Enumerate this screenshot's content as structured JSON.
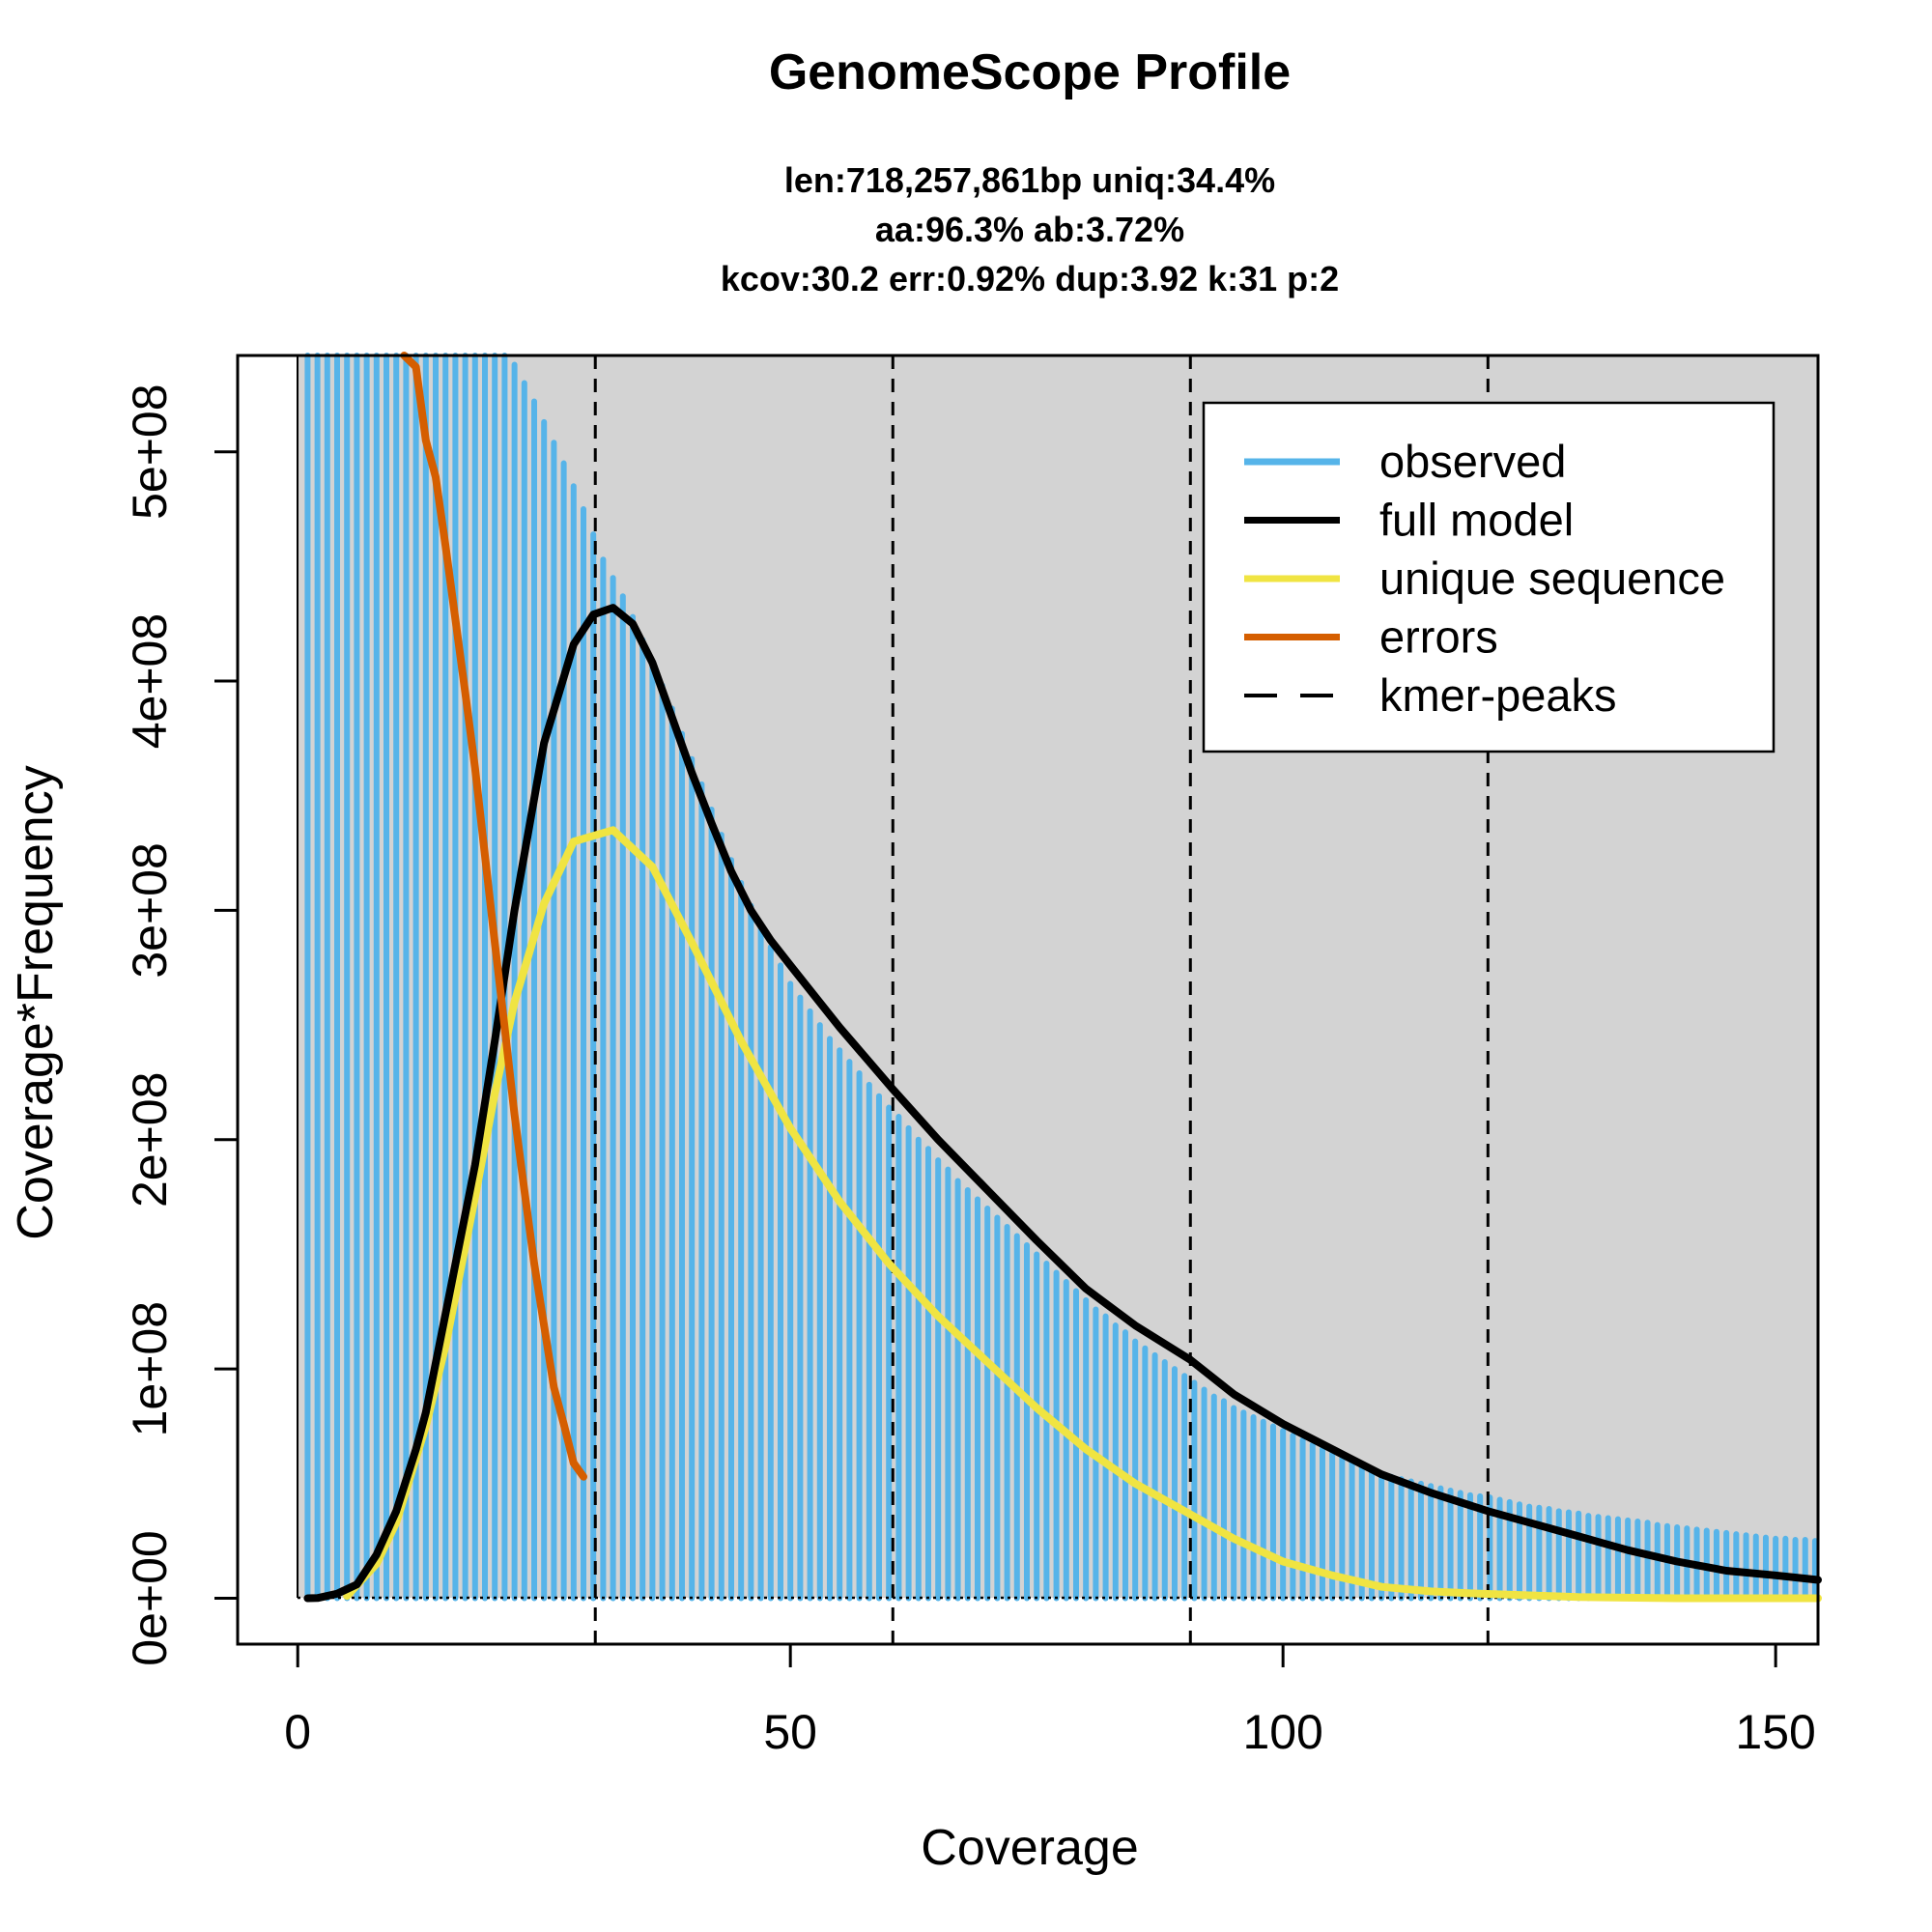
{
  "chart_data": {
    "type": "bar",
    "title": "GenomeScope Profile",
    "subtitle_lines": [
      "len:718,257,861bp uniq:34.4%",
      "aa:96.3% ab:3.72%",
      "kcov:30.2 err:0.92%  dup:3.92  k:31 p:2"
    ],
    "xlabel": "Coverage",
    "ylabel": "Coverage*Frequency",
    "xlim": [
      -6.1,
      154.3
    ],
    "ylim": [
      -20000000,
      542000000
    ],
    "value_scale": 100000000,
    "x_ticks": [
      {
        "value": 0,
        "label": "0"
      },
      {
        "value": 50,
        "label": "50"
      },
      {
        "value": 100,
        "label": "100"
      },
      {
        "value": 150,
        "label": "150"
      }
    ],
    "y_ticks": [
      {
        "value": 0,
        "label": "0e+00"
      },
      {
        "value": 1,
        "label": "1e+08"
      },
      {
        "value": 2,
        "label": "2e+08"
      },
      {
        "value": 3,
        "label": "3e+08"
      },
      {
        "value": 4,
        "label": "4e+08"
      },
      {
        "value": 5,
        "label": "5e+08"
      }
    ],
    "colors": {
      "observed": "#56B4E9",
      "full_model": "#000000",
      "unique": "#F0E442",
      "errors": "#D55E00",
      "background": "#D3D3D3"
    },
    "legend": {
      "placement": "top-right",
      "entries": [
        {
          "label": "observed",
          "key": "observed",
          "dash": false
        },
        {
          "label": "full model",
          "key": "full_model",
          "dash": false
        },
        {
          "label": "unique sequence",
          "key": "unique",
          "dash": false
        },
        {
          "label": "errors",
          "key": "errors",
          "dash": false
        },
        {
          "label": "kmer-peaks",
          "key": "full_model",
          "dash": true
        }
      ]
    },
    "kmer_peaks": [
      30.2,
      60.4,
      90.6,
      120.8
    ],
    "observed": {
      "x_start": 1,
      "values": [
        40,
        25,
        18,
        14,
        12,
        10.5,
        9.5,
        8.6,
        7.9,
        7.3,
        6.8,
        6.5,
        6.2,
        6.0,
        5.85,
        5.75,
        5.65,
        5.6,
        5.55,
        5.5,
        5.45,
        5.38,
        5.3,
        5.22,
        5.13,
        5.04,
        4.95,
        4.85,
        4.75,
        4.64,
        4.53,
        4.45,
        4.37,
        4.28,
        4.18,
        4.08,
        3.98,
        3.88,
        3.77,
        3.66,
        3.55,
        3.44,
        3.33,
        3.22,
        3.12,
        3.02,
        2.93,
        2.84,
        2.76,
        2.68,
        2.62,
        2.56,
        2.5,
        2.44,
        2.39,
        2.34,
        2.29,
        2.24,
        2.19,
        2.14,
        2.1,
        2.05,
        2.0,
        1.96,
        1.91,
        1.87,
        1.82,
        1.78,
        1.74,
        1.7,
        1.66,
        1.62,
        1.58,
        1.54,
        1.5,
        1.46,
        1.42,
        1.38,
        1.34,
        1.3,
        1.26,
        1.23,
        1.19,
        1.16,
        1.12,
        1.09,
        1.06,
        1.03,
        1.0,
        0.97,
        0.94,
        0.91,
        0.88,
        0.86,
        0.83,
        0.81,
        0.79,
        0.77,
        0.75,
        0.73,
        0.71,
        0.69,
        0.67,
        0.65,
        0.63,
        0.61,
        0.59,
        0.57,
        0.56,
        0.54,
        0.53,
        0.52,
        0.51,
        0.5,
        0.49,
        0.48,
        0.47,
        0.46,
        0.45,
        0.445,
        0.44,
        0.43,
        0.42,
        0.41,
        0.4,
        0.395,
        0.39,
        0.38,
        0.375,
        0.37,
        0.36,
        0.355,
        0.35,
        0.345,
        0.34,
        0.335,
        0.33,
        0.32,
        0.315,
        0.31,
        0.305,
        0.3,
        0.295,
        0.29,
        0.285,
        0.28,
        0.275,
        0.27,
        0.265,
        0.26,
        0.26,
        0.255,
        0.255,
        0.25
      ]
    },
    "full_model": [
      [
        1,
        0
      ],
      [
        2,
        0.001
      ],
      [
        4,
        0.02
      ],
      [
        6,
        0.06
      ],
      [
        8,
        0.19
      ],
      [
        10,
        0.38
      ],
      [
        12,
        0.65
      ],
      [
        13,
        0.81
      ],
      [
        15,
        1.24
      ],
      [
        18,
        1.89
      ],
      [
        20,
        2.43
      ],
      [
        22,
        3.0
      ],
      [
        25,
        3.73
      ],
      [
        28,
        4.16
      ],
      [
        30,
        4.29
      ],
      [
        32,
        4.32
      ],
      [
        34,
        4.25
      ],
      [
        36,
        4.08
      ],
      [
        38,
        3.84
      ],
      [
        40,
        3.6
      ],
      [
        42,
        3.38
      ],
      [
        44,
        3.17
      ],
      [
        46,
        3.0
      ],
      [
        48,
        2.87
      ],
      [
        50,
        2.76
      ],
      [
        55,
        2.49
      ],
      [
        60.4,
        2.22
      ],
      [
        65,
        2.0
      ],
      [
        70,
        1.78
      ],
      [
        75,
        1.56
      ],
      [
        80,
        1.35
      ],
      [
        85,
        1.19
      ],
      [
        90.6,
        1.04
      ],
      [
        95,
        0.89
      ],
      [
        100,
        0.76
      ],
      [
        105,
        0.65
      ],
      [
        110,
        0.54
      ],
      [
        115,
        0.46
      ],
      [
        120.8,
        0.38
      ],
      [
        125,
        0.33
      ],
      [
        130,
        0.27
      ],
      [
        135,
        0.21
      ],
      [
        140,
        0.16
      ],
      [
        145,
        0.12
      ],
      [
        150,
        0.1
      ],
      [
        154.3,
        0.08
      ]
    ],
    "unique_sequence": [
      [
        5,
        0.01
      ],
      [
        8,
        0.15
      ],
      [
        10,
        0.33
      ],
      [
        13,
        0.75
      ],
      [
        15,
        1.1
      ],
      [
        18,
        1.75
      ],
      [
        20,
        2.2
      ],
      [
        22,
        2.6
      ],
      [
        25,
        3.03
      ],
      [
        28,
        3.3
      ],
      [
        32,
        3.35
      ],
      [
        36,
        3.19
      ],
      [
        40,
        2.86
      ],
      [
        45,
        2.43
      ],
      [
        50,
        2.05
      ],
      [
        55,
        1.73
      ],
      [
        60,
        1.46
      ],
      [
        65,
        1.23
      ],
      [
        70,
        1.03
      ],
      [
        75,
        0.83
      ],
      [
        80,
        0.65
      ],
      [
        85,
        0.5
      ],
      [
        90,
        0.38
      ],
      [
        95,
        0.26
      ],
      [
        100,
        0.16
      ],
      [
        105,
        0.1
      ],
      [
        110,
        0.05
      ],
      [
        115,
        0.03
      ],
      [
        120,
        0.02
      ],
      [
        130,
        0.005
      ],
      [
        140,
        0
      ],
      [
        154.3,
        0
      ]
    ],
    "errors": [
      [
        10.8,
        5.42
      ],
      [
        12,
        5.37
      ],
      [
        13,
        5.05
      ],
      [
        14,
        4.89
      ],
      [
        15,
        4.59
      ],
      [
        16,
        4.27
      ],
      [
        17,
        3.95
      ],
      [
        18,
        3.62
      ],
      [
        19,
        3.24
      ],
      [
        20,
        2.86
      ],
      [
        21,
        2.49
      ],
      [
        22,
        2.11
      ],
      [
        23,
        1.78
      ],
      [
        24,
        1.46
      ],
      [
        25,
        1.19
      ],
      [
        26,
        0.92
      ],
      [
        27,
        0.76
      ],
      [
        28,
        0.59
      ],
      [
        29,
        0.53
      ]
    ]
  }
}
